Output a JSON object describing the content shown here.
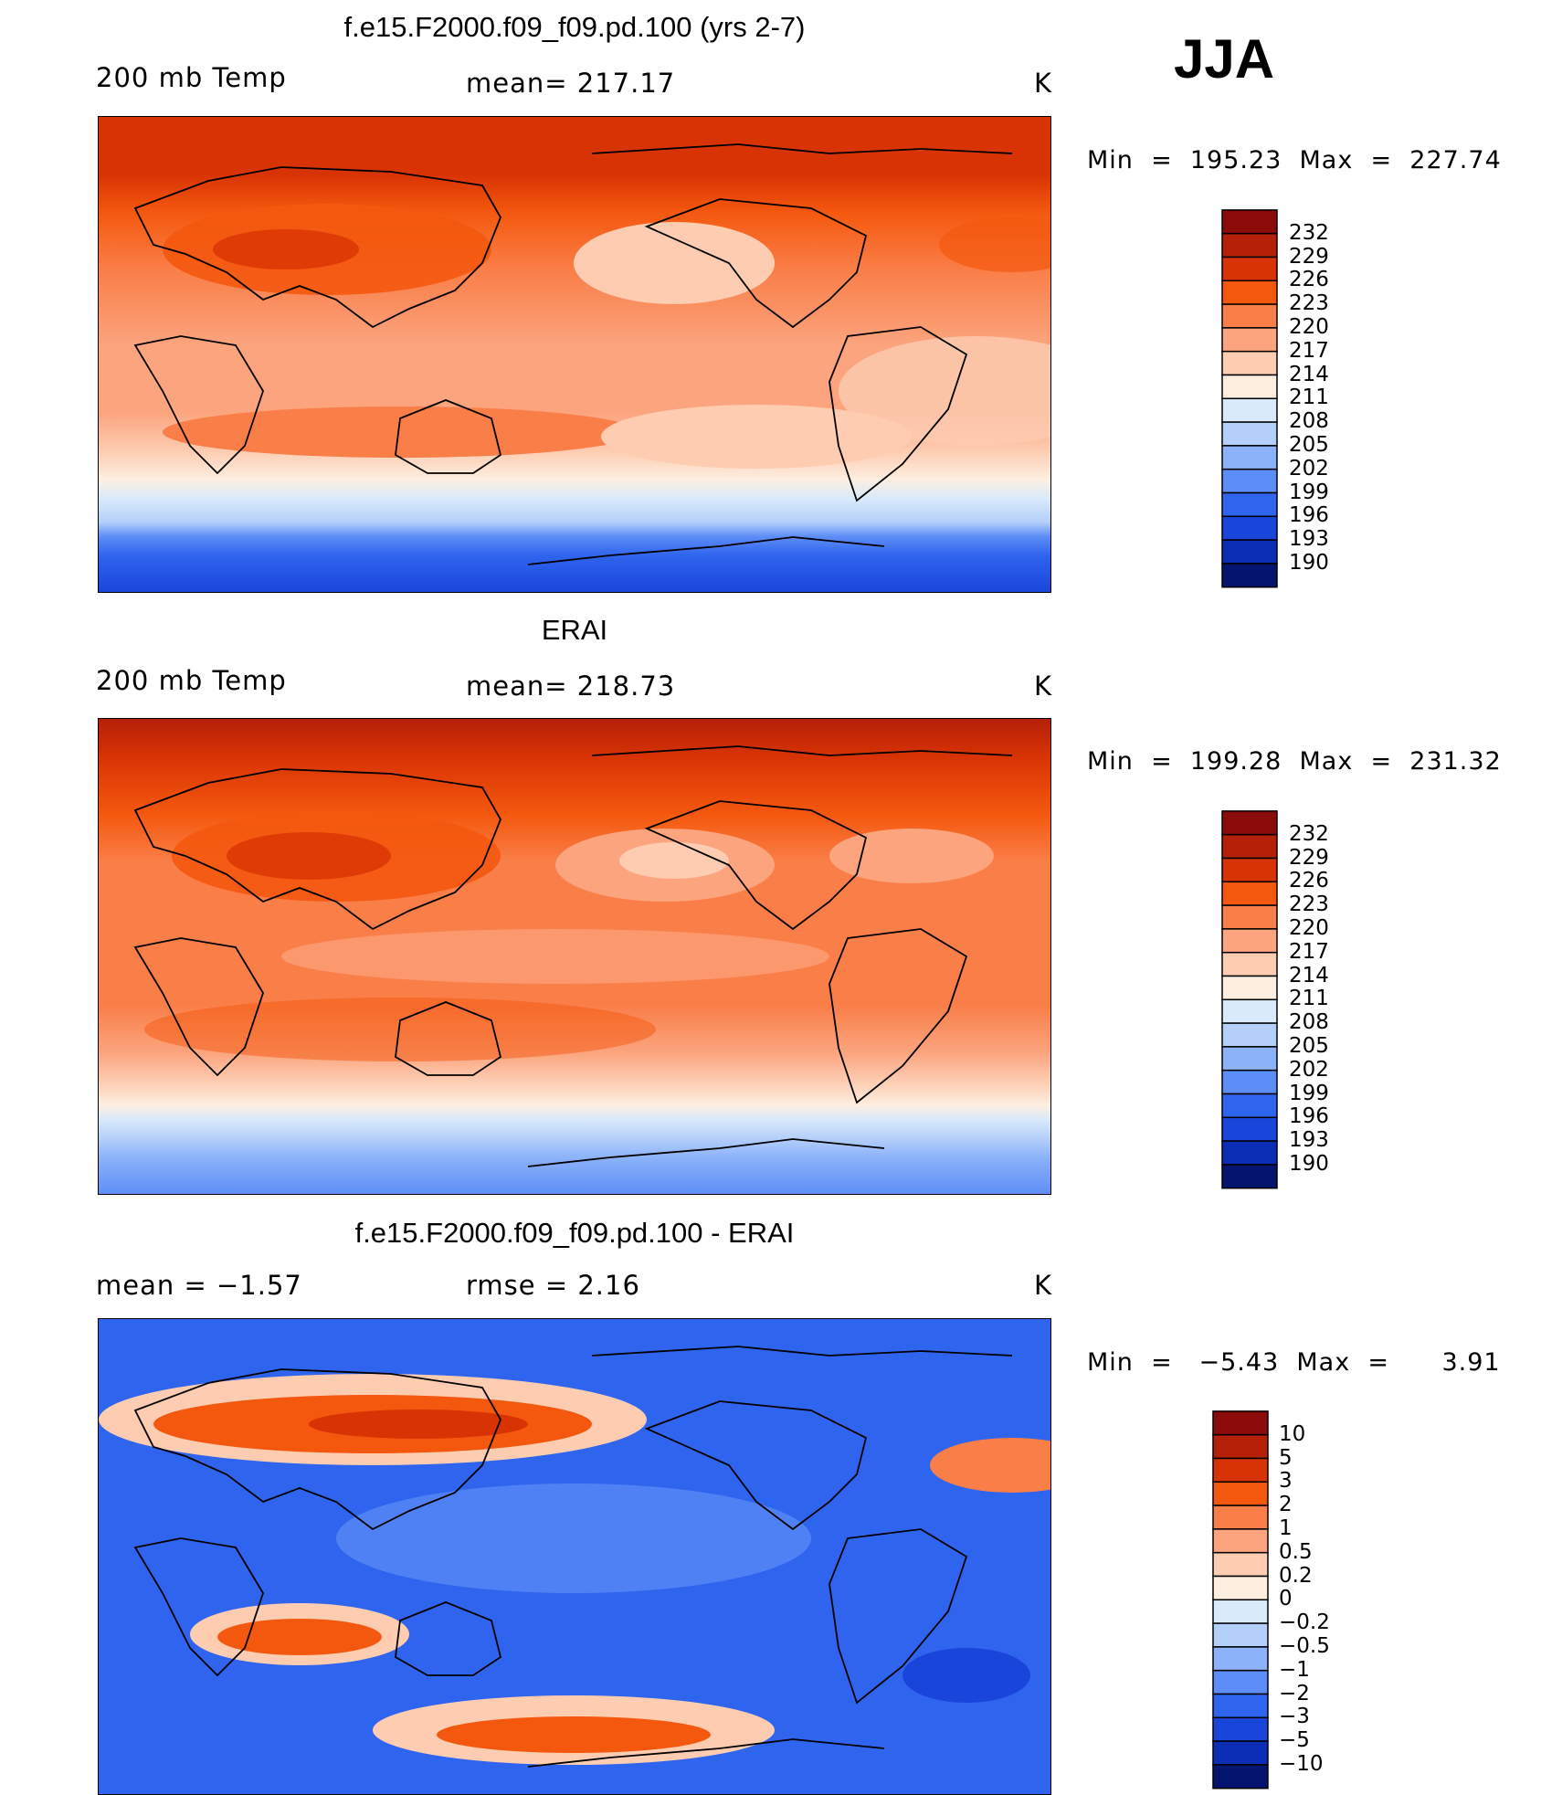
{
  "season": "JJA",
  "panels": [
    {
      "title": "f.e15.F2000.f09_f09.pd.100 (yrs 2-7)",
      "left_label": "200 mb Temp",
      "center_label": "mean= 217.17",
      "units": "K",
      "minmax": "Min  =  195.23  Max  =  227.74"
    },
    {
      "title": "ERAI",
      "left_label": "200 mb Temp",
      "center_label": "mean= 218.73",
      "units": "K",
      "minmax": "Min  =  199.28  Max  =  231.32"
    },
    {
      "title": "f.e15.F2000.f09_f09.pd.100 - ERAI",
      "left_label": "mean  =    −1.57",
      "center_label": "rmse  =     2.16",
      "units": "K",
      "minmax": "Min  =   −5.43  Max  =      3.91"
    }
  ],
  "colorbar_abs": {
    "labels": [
      "232",
      "229",
      "226",
      "223",
      "220",
      "217",
      "214",
      "211",
      "208",
      "205",
      "202",
      "199",
      "196",
      "193",
      "190"
    ],
    "colors": [
      "#8b0a0a",
      "#b52008",
      "#d83304",
      "#f4580e",
      "#fa7e48",
      "#fba47e",
      "#fdccb1",
      "#fdeee0",
      "#d9eafb",
      "#b4cffa",
      "#8cb2fa",
      "#5d8df6",
      "#2f64ee",
      "#1a45da",
      "#0c2eb6",
      "#05146f"
    ]
  },
  "colorbar_diff": {
    "labels": [
      "10",
      "5",
      "3",
      "2",
      "1",
      "0.5",
      "0.2",
      "0",
      "−0.2",
      "−0.5",
      "−1",
      "−2",
      "−3",
      "−5",
      "−10"
    ],
    "colors": [
      "#8b0a0a",
      "#b52008",
      "#d83304",
      "#f4580e",
      "#fa7e48",
      "#fba47e",
      "#fdccb1",
      "#fdeee0",
      "#d9eafb",
      "#b4cffa",
      "#8cb2fa",
      "#5d8df6",
      "#2f64ee",
      "#1a45da",
      "#0c2eb6",
      "#05146f"
    ]
  },
  "chart_data": [
    {
      "type": "heatmap",
      "title": "f.e15.F2000.f09_f09.pd.100 (yrs 2-7)",
      "variable": "200 mb Temp",
      "season": "JJA",
      "units": "K",
      "mean": 217.17,
      "min": 195.23,
      "max": 227.74,
      "contour_levels": [
        190,
        193,
        196,
        199,
        202,
        205,
        208,
        211,
        214,
        217,
        220,
        223,
        226,
        229,
        232
      ]
    },
    {
      "type": "heatmap",
      "title": "ERAI",
      "variable": "200 mb Temp",
      "season": "JJA",
      "units": "K",
      "mean": 218.73,
      "min": 199.28,
      "max": 231.32,
      "contour_levels": [
        190,
        193,
        196,
        199,
        202,
        205,
        208,
        211,
        214,
        217,
        220,
        223,
        226,
        229,
        232
      ]
    },
    {
      "type": "heatmap",
      "title": "f.e15.F2000.f09_f09.pd.100 - ERAI",
      "season": "JJA",
      "units": "K",
      "mean": -1.57,
      "rmse": 2.16,
      "min": -5.43,
      "max": 3.91,
      "contour_levels": [
        -10,
        -5,
        -3,
        -2,
        -1,
        -0.5,
        -0.2,
        0,
        0.2,
        0.5,
        1,
        2,
        3,
        5,
        10
      ]
    }
  ]
}
